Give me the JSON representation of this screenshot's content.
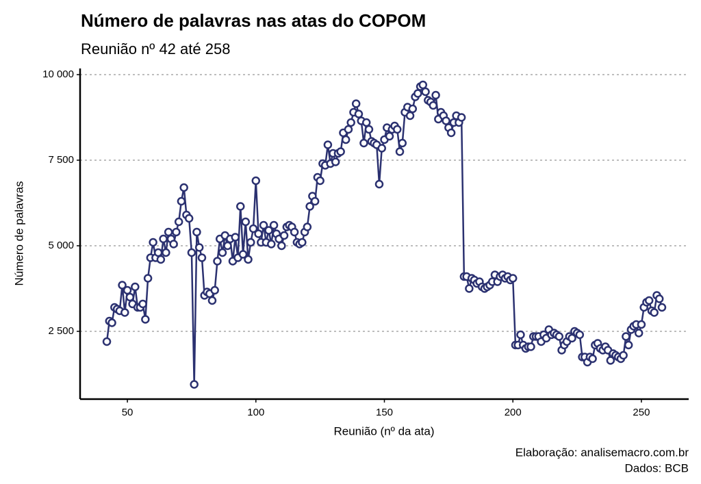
{
  "chart_data": {
    "type": "line",
    "title": "Número de palavras nas atas do COPOM",
    "subtitle": "Reunião nº 42 até 258",
    "x_label": "Reunião (nº da ata)",
    "y_label": "Número de palavras",
    "caption": [
      "Elaboração: analisemacro.com.br",
      "Dados: BCB"
    ],
    "color": "#2b3170",
    "marker_fill": "#ffffff",
    "grid": true,
    "xlim": [
      31.6,
      268.4
    ],
    "ylim": [
      520,
      10180
    ],
    "xticks": [
      50,
      100,
      150,
      200,
      250
    ],
    "yticks": [
      {
        "value": 2500,
        "label": "2 500"
      },
      {
        "value": 5000,
        "label": "5 000"
      },
      {
        "value": 7500,
        "label": "7 500"
      },
      {
        "value": 10000,
        "label": "10 000"
      }
    ],
    "x": [
      42,
      43,
      44,
      45,
      46,
      47,
      48,
      49,
      50,
      51,
      52,
      53,
      54,
      55,
      56,
      57,
      58,
      59,
      60,
      61,
      62,
      63,
      64,
      65,
      66,
      67,
      68,
      69,
      70,
      71,
      72,
      73,
      74,
      75,
      76,
      77,
      78,
      79,
      80,
      81,
      82,
      83,
      84,
      85,
      86,
      87,
      88,
      89,
      90,
      91,
      92,
      93,
      94,
      95,
      96,
      97,
      98,
      99,
      100,
      101,
      102,
      103,
      104,
      105,
      106,
      107,
      108,
      109,
      110,
      111,
      112,
      113,
      114,
      115,
      116,
      117,
      118,
      119,
      120,
      121,
      122,
      123,
      124,
      125,
      126,
      127,
      128,
      129,
      130,
      131,
      132,
      133,
      134,
      135,
      136,
      137,
      138,
      139,
      140,
      141,
      142,
      143,
      144,
      145,
      146,
      147,
      148,
      149,
      150,
      151,
      152,
      153,
      154,
      155,
      156,
      157,
      158,
      159,
      160,
      161,
      162,
      163,
      164,
      165,
      166,
      167,
      168,
      169,
      170,
      171,
      172,
      173,
      174,
      175,
      176,
      177,
      178,
      179,
      180,
      181,
      182,
      183,
      184,
      185,
      186,
      187,
      188,
      189,
      190,
      191,
      192,
      193,
      194,
      195,
      196,
      197,
      198,
      199,
      200,
      201,
      202,
      203,
      204,
      205,
      206,
      207,
      208,
      209,
      210,
      211,
      212,
      213,
      214,
      215,
      216,
      217,
      218,
      219,
      220,
      221,
      222,
      223,
      224,
      225,
      226,
      227,
      228,
      229,
      230,
      231,
      232,
      233,
      234,
      235,
      236,
      237,
      238,
      239,
      240,
      241,
      242,
      243,
      244,
      245,
      246,
      247,
      248,
      249,
      250,
      251,
      252,
      253,
      254,
      255,
      256,
      257,
      258
    ],
    "values": [
      2200,
      2800,
      2750,
      3200,
      3150,
      3100,
      3850,
      3050,
      3700,
      3500,
      3300,
      3800,
      3200,
      3200,
      3300,
      2850,
      4050,
      4650,
      5100,
      4650,
      4800,
      4600,
      5200,
      4800,
      5400,
      5200,
      5050,
      5400,
      5700,
      6300,
      6700,
      5900,
      5800,
      4800,
      950,
      5400,
      4950,
      4650,
      3550,
      3650,
      3600,
      3400,
      3700,
      4550,
      5200,
      4800,
      5300,
      5000,
      5200,
      4550,
      5250,
      4650,
      6150,
      4750,
      5700,
      4600,
      5100,
      5500,
      6900,
      5350,
      5100,
      5600,
      5100,
      5450,
      5050,
      5600,
      5350,
      5200,
      5000,
      5300,
      5550,
      5600,
      5550,
      5400,
      5100,
      5050,
      5100,
      5400,
      5550,
      6150,
      6450,
      6300,
      7000,
      6900,
      7400,
      7350,
      7950,
      7400,
      7700,
      7450,
      7700,
      7750,
      8300,
      8100,
      8400,
      8600,
      8900,
      9150,
      8850,
      8650,
      8000,
      8600,
      8400,
      8050,
      8000,
      7950,
      6800,
      7850,
      8100,
      8450,
      8200,
      8400,
      8500,
      8400,
      7750,
      8000,
      8900,
      9050,
      8800,
      9000,
      9350,
      9450,
      9650,
      9700,
      9500,
      9250,
      9200,
      9100,
      9400,
      8700,
      8900,
      8800,
      8650,
      8450,
      8300,
      8600,
      8800,
      8600,
      8750,
      4100,
      4100,
      3750,
      4050,
      4000,
      3900,
      3950,
      3800,
      3750,
      3800,
      3850,
      3950,
      4150,
      3950,
      4100,
      4150,
      4050,
      4100,
      4000,
      4050,
      2100,
      2100,
      2400,
      2100,
      2000,
      2050,
      2050,
      2350,
      2350,
      2350,
      2200,
      2400,
      2300,
      2550,
      2400,
      2450,
      2400,
      2350,
      1950,
      2100,
      2200,
      2350,
      2300,
      2500,
      2450,
      2400,
      1750,
      1750,
      1600,
      1750,
      1700,
      2100,
      2150,
      2000,
      1950,
      2050,
      1950,
      1650,
      1850,
      1800,
      1750,
      1700,
      1800,
      2350,
      2100,
      2550,
      2650,
      2700,
      2450,
      2700,
      3200,
      3350,
      3400,
      3100,
      3050,
      3550,
      3450,
      3200
    ]
  }
}
